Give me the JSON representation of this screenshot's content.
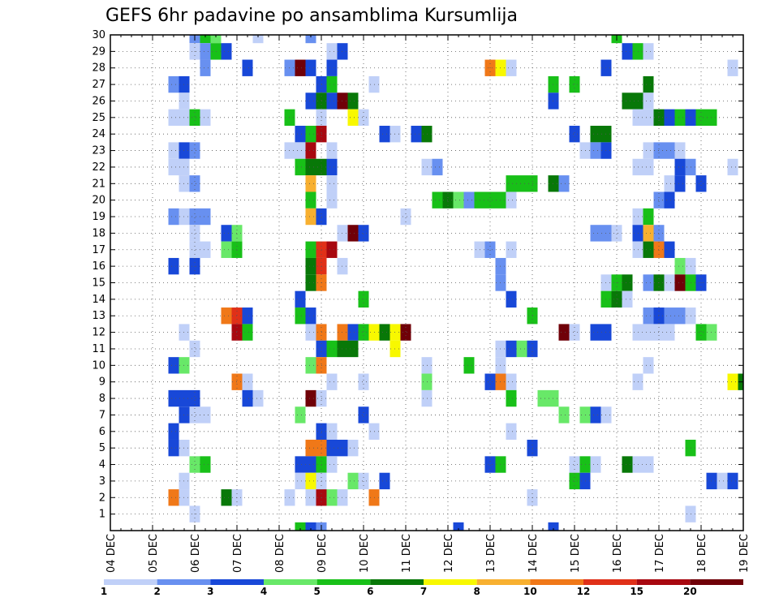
{
  "chart_data": {
    "type": "heatmap",
    "title": "GEFS 6hr padavine po ansamblima Kursumlija",
    "xlabel": "",
    "ylabel": "",
    "x_tick_labels": [
      "04 DEC",
      "05 DEC",
      "06 DEC",
      "07 DEC",
      "08 DEC",
      "09 DEC",
      "10 DEC",
      "11 DEC",
      "12 DEC",
      "13 DEC",
      "14 DEC",
      "15 DEC",
      "16 DEC",
      "17 DEC",
      "18 DEC",
      "19 DEC"
    ],
    "x_range_6h_steps": [
      0,
      60
    ],
    "y_tick_labels": [
      "1",
      "2",
      "3",
      "4",
      "5",
      "6",
      "7",
      "8",
      "9",
      "10",
      "11",
      "12",
      "13",
      "14",
      "15",
      "16",
      "17",
      "18",
      "19",
      "20",
      "21",
      "22",
      "23",
      "24",
      "25",
      "26",
      "27",
      "28",
      "29",
      "30"
    ],
    "y_range": [
      0,
      30
    ],
    "grid": true,
    "legend_position": "bottom",
    "color_levels": [
      {
        "label": "1",
        "color": "#c0d0f8"
      },
      {
        "label": "2",
        "color": "#6890f0"
      },
      {
        "label": "3",
        "color": "#1848d8"
      },
      {
        "label": "4",
        "color": "#68e868"
      },
      {
        "label": "5",
        "color": "#18c018"
      },
      {
        "label": "6",
        "color": "#087808"
      },
      {
        "label": "7",
        "color": "#f8f800"
      },
      {
        "label": "8",
        "color": "#f8b030"
      },
      {
        "label": "10",
        "color": "#f07818"
      },
      {
        "label": "12",
        "color": "#e03018"
      },
      {
        "label": "15",
        "color": "#a80810"
      },
      {
        "label": "20",
        "color": "#700008"
      }
    ],
    "legend_tick_labels": [
      "1",
      "2",
      "3",
      "4",
      "5",
      "6",
      "7",
      "8",
      "10",
      "12",
      "15",
      "20"
    ],
    "cells": [
      [
        30,
        8,
        1
      ],
      [
        30,
        9,
        4
      ],
      [
        30,
        10,
        3
      ],
      [
        30,
        14,
        0
      ],
      [
        30,
        19,
        1
      ],
      [
        30,
        48,
        4
      ],
      [
        29,
        8,
        0
      ],
      [
        29,
        9,
        1
      ],
      [
        29,
        10,
        4
      ],
      [
        29,
        11,
        2
      ],
      [
        29,
        21,
        0
      ],
      [
        29,
        22,
        2
      ],
      [
        29,
        49,
        2
      ],
      [
        29,
        50,
        4
      ],
      [
        29,
        51,
        0
      ],
      [
        28,
        9,
        1
      ],
      [
        28,
        13,
        2
      ],
      [
        28,
        17,
        1
      ],
      [
        28,
        18,
        11
      ],
      [
        28,
        19,
        2
      ],
      [
        28,
        21,
        2
      ],
      [
        28,
        36,
        8
      ],
      [
        28,
        37,
        6
      ],
      [
        28,
        38,
        0
      ],
      [
        28,
        47,
        2
      ],
      [
        28,
        59,
        0
      ],
      [
        27,
        6,
        1
      ],
      [
        27,
        7,
        2
      ],
      [
        27,
        20,
        2
      ],
      [
        27,
        21,
        4
      ],
      [
        27,
        25,
        0
      ],
      [
        27,
        42,
        4
      ],
      [
        27,
        44,
        4
      ],
      [
        27,
        51,
        5
      ],
      [
        26,
        7,
        0
      ],
      [
        26,
        19,
        2
      ],
      [
        26,
        20,
        5
      ],
      [
        26,
        21,
        2
      ],
      [
        26,
        22,
        11
      ],
      [
        26,
        23,
        5
      ],
      [
        26,
        42,
        2
      ],
      [
        26,
        49,
        5
      ],
      [
        26,
        50,
        5
      ],
      [
        26,
        51,
        0
      ],
      [
        25,
        6,
        0
      ],
      [
        25,
        7,
        0
      ],
      [
        25,
        8,
        4
      ],
      [
        25,
        9,
        0
      ],
      [
        25,
        17,
        4
      ],
      [
        25,
        20,
        0
      ],
      [
        25,
        23,
        6
      ],
      [
        25,
        24,
        0
      ],
      [
        25,
        50,
        0
      ],
      [
        25,
        51,
        0
      ],
      [
        25,
        52,
        5
      ],
      [
        25,
        53,
        2
      ],
      [
        25,
        54,
        4
      ],
      [
        25,
        55,
        2
      ],
      [
        25,
        56,
        4
      ],
      [
        25,
        57,
        4
      ],
      [
        24,
        18,
        2
      ],
      [
        24,
        19,
        4
      ],
      [
        24,
        20,
        10
      ],
      [
        24,
        26,
        2
      ],
      [
        24,
        27,
        0
      ],
      [
        24,
        29,
        2
      ],
      [
        24,
        30,
        5
      ],
      [
        24,
        44,
        2
      ],
      [
        24,
        46,
        5
      ],
      [
        24,
        47,
        5
      ],
      [
        23,
        6,
        0
      ],
      [
        23,
        7,
        2
      ],
      [
        23,
        8,
        1
      ],
      [
        23,
        17,
        0
      ],
      [
        23,
        18,
        0
      ],
      [
        23,
        19,
        10
      ],
      [
        23,
        21,
        0
      ],
      [
        23,
        45,
        0
      ],
      [
        23,
        46,
        1
      ],
      [
        23,
        47,
        2
      ],
      [
        23,
        51,
        0
      ],
      [
        23,
        52,
        1
      ],
      [
        23,
        53,
        1
      ],
      [
        23,
        54,
        0
      ],
      [
        22,
        6,
        0
      ],
      [
        22,
        7,
        0
      ],
      [
        22,
        18,
        4
      ],
      [
        22,
        19,
        5
      ],
      [
        22,
        20,
        5
      ],
      [
        22,
        21,
        2
      ],
      [
        22,
        30,
        0
      ],
      [
        22,
        31,
        1
      ],
      [
        22,
        50,
        0
      ],
      [
        22,
        51,
        0
      ],
      [
        22,
        54,
        2
      ],
      [
        22,
        55,
        1
      ],
      [
        22,
        59,
        0
      ],
      [
        21,
        7,
        0
      ],
      [
        21,
        8,
        1
      ],
      [
        21,
        19,
        7
      ],
      [
        21,
        21,
        0
      ],
      [
        21,
        38,
        4
      ],
      [
        21,
        39,
        4
      ],
      [
        21,
        40,
        4
      ],
      [
        21,
        42,
        5
      ],
      [
        21,
        43,
        1
      ],
      [
        21,
        53,
        0
      ],
      [
        21,
        54,
        2
      ],
      [
        21,
        56,
        2
      ],
      [
        20,
        19,
        4
      ],
      [
        20,
        21,
        0
      ],
      [
        20,
        31,
        4
      ],
      [
        20,
        32,
        5
      ],
      [
        20,
        33,
        3
      ],
      [
        20,
        34,
        1
      ],
      [
        20,
        35,
        4
      ],
      [
        20,
        36,
        4
      ],
      [
        20,
        37,
        4
      ],
      [
        20,
        38,
        0
      ],
      [
        20,
        52,
        1
      ],
      [
        20,
        53,
        2
      ],
      [
        19,
        6,
        1
      ],
      [
        19,
        7,
        0
      ],
      [
        19,
        8,
        1
      ],
      [
        19,
        9,
        1
      ],
      [
        19,
        19,
        7
      ],
      [
        19,
        20,
        2
      ],
      [
        19,
        28,
        0
      ],
      [
        19,
        50,
        0
      ],
      [
        19,
        51,
        4
      ],
      [
        18,
        8,
        0
      ],
      [
        18,
        11,
        2
      ],
      [
        18,
        12,
        3
      ],
      [
        18,
        22,
        0
      ],
      [
        18,
        23,
        11
      ],
      [
        18,
        24,
        2
      ],
      [
        18,
        46,
        1
      ],
      [
        18,
        47,
        1
      ],
      [
        18,
        48,
        0
      ],
      [
        18,
        50,
        2
      ],
      [
        18,
        51,
        7
      ],
      [
        18,
        52,
        1
      ],
      [
        17,
        8,
        0
      ],
      [
        17,
        9,
        0
      ],
      [
        17,
        11,
        3
      ],
      [
        17,
        12,
        4
      ],
      [
        17,
        19,
        4
      ],
      [
        17,
        20,
        9
      ],
      [
        17,
        21,
        10
      ],
      [
        17,
        35,
        0
      ],
      [
        17,
        36,
        1
      ],
      [
        17,
        38,
        0
      ],
      [
        17,
        50,
        0
      ],
      [
        17,
        51,
        5
      ],
      [
        17,
        52,
        8
      ],
      [
        17,
        53,
        2
      ],
      [
        16,
        6,
        2
      ],
      [
        16,
        8,
        2
      ],
      [
        16,
        19,
        5
      ],
      [
        16,
        20,
        9
      ],
      [
        16,
        22,
        0
      ],
      [
        16,
        37,
        1
      ],
      [
        16,
        54,
        3
      ],
      [
        16,
        55,
        0
      ],
      [
        15,
        19,
        5
      ],
      [
        15,
        20,
        8
      ],
      [
        15,
        37,
        1
      ],
      [
        15,
        47,
        0
      ],
      [
        15,
        48,
        4
      ],
      [
        15,
        49,
        5
      ],
      [
        15,
        51,
        1
      ],
      [
        15,
        52,
        5
      ],
      [
        15,
        53,
        0
      ],
      [
        15,
        54,
        11
      ],
      [
        15,
        55,
        4
      ],
      [
        15,
        56,
        2
      ],
      [
        14,
        18,
        2
      ],
      [
        14,
        24,
        4
      ],
      [
        14,
        38,
        2
      ],
      [
        14,
        47,
        4
      ],
      [
        14,
        48,
        5
      ],
      [
        14,
        49,
        0
      ],
      [
        13,
        11,
        8
      ],
      [
        13,
        12,
        9
      ],
      [
        13,
        13,
        2
      ],
      [
        13,
        18,
        4
      ],
      [
        13,
        19,
        2
      ],
      [
        13,
        40,
        4
      ],
      [
        13,
        51,
        1
      ],
      [
        13,
        52,
        2
      ],
      [
        13,
        53,
        1
      ],
      [
        13,
        54,
        1
      ],
      [
        13,
        55,
        0
      ],
      [
        12,
        7,
        0
      ],
      [
        12,
        12,
        10
      ],
      [
        12,
        13,
        4
      ],
      [
        12,
        19,
        0
      ],
      [
        12,
        20,
        8
      ],
      [
        12,
        22,
        8
      ],
      [
        12,
        23,
        2
      ],
      [
        12,
        24,
        4
      ],
      [
        12,
        25,
        6
      ],
      [
        12,
        26,
        5
      ],
      [
        12,
        27,
        6
      ],
      [
        12,
        28,
        11
      ],
      [
        12,
        43,
        11
      ],
      [
        12,
        44,
        0
      ],
      [
        12,
        46,
        2
      ],
      [
        12,
        47,
        2
      ],
      [
        12,
        50,
        0
      ],
      [
        12,
        51,
        0
      ],
      [
        12,
        52,
        0
      ],
      [
        12,
        53,
        0
      ],
      [
        12,
        56,
        4
      ],
      [
        12,
        57,
        3
      ],
      [
        11,
        8,
        0
      ],
      [
        11,
        20,
        2
      ],
      [
        11,
        21,
        4
      ],
      [
        11,
        22,
        5
      ],
      [
        11,
        23,
        5
      ],
      [
        11,
        27,
        6
      ],
      [
        11,
        37,
        0
      ],
      [
        11,
        38,
        2
      ],
      [
        11,
        39,
        3
      ],
      [
        11,
        40,
        2
      ],
      [
        10,
        6,
        2
      ],
      [
        10,
        7,
        3
      ],
      [
        10,
        19,
        3
      ],
      [
        10,
        20,
        8
      ],
      [
        10,
        30,
        0
      ],
      [
        10,
        34,
        4
      ],
      [
        10,
        37,
        0
      ],
      [
        10,
        51,
        0
      ],
      [
        9,
        12,
        8
      ],
      [
        9,
        13,
        0
      ],
      [
        9,
        21,
        0
      ],
      [
        9,
        24,
        0
      ],
      [
        9,
        30,
        3
      ],
      [
        9,
        36,
        2
      ],
      [
        9,
        37,
        8
      ],
      [
        9,
        38,
        0
      ],
      [
        9,
        50,
        0
      ],
      [
        9,
        59,
        6
      ],
      [
        9,
        60,
        5
      ],
      [
        8,
        6,
        2
      ],
      [
        8,
        7,
        2
      ],
      [
        8,
        8,
        2
      ],
      [
        8,
        13,
        2
      ],
      [
        8,
        14,
        0
      ],
      [
        8,
        19,
        11
      ],
      [
        8,
        20,
        0
      ],
      [
        8,
        30,
        0
      ],
      [
        8,
        38,
        4
      ],
      [
        8,
        41,
        3
      ],
      [
        8,
        42,
        3
      ],
      [
        7,
        7,
        2
      ],
      [
        7,
        8,
        0
      ],
      [
        7,
        9,
        0
      ],
      [
        7,
        18,
        3
      ],
      [
        7,
        24,
        2
      ],
      [
        7,
        43,
        3
      ],
      [
        7,
        45,
        3
      ],
      [
        7,
        46,
        2
      ],
      [
        7,
        47,
        0
      ],
      [
        6,
        6,
        2
      ],
      [
        6,
        20,
        2
      ],
      [
        6,
        21,
        0
      ],
      [
        6,
        25,
        0
      ],
      [
        6,
        38,
        0
      ],
      [
        5,
        6,
        2
      ],
      [
        5,
        7,
        0
      ],
      [
        5,
        19,
        8
      ],
      [
        5,
        20,
        8
      ],
      [
        5,
        21,
        2
      ],
      [
        5,
        22,
        2
      ],
      [
        5,
        23,
        0
      ],
      [
        5,
        40,
        2
      ],
      [
        5,
        55,
        4
      ],
      [
        4,
        8,
        3
      ],
      [
        4,
        9,
        4
      ],
      [
        4,
        18,
        2
      ],
      [
        4,
        19,
        2
      ],
      [
        4,
        20,
        4
      ],
      [
        4,
        21,
        0
      ],
      [
        4,
        36,
        2
      ],
      [
        4,
        37,
        4
      ],
      [
        4,
        44,
        0
      ],
      [
        4,
        45,
        4
      ],
      [
        4,
        46,
        0
      ],
      [
        4,
        49,
        5
      ],
      [
        4,
        50,
        0
      ],
      [
        4,
        51,
        0
      ],
      [
        3,
        7,
        0
      ],
      [
        3,
        18,
        0
      ],
      [
        3,
        19,
        6
      ],
      [
        3,
        20,
        0
      ],
      [
        3,
        23,
        3
      ],
      [
        3,
        24,
        0
      ],
      [
        3,
        26,
        2
      ],
      [
        3,
        44,
        4
      ],
      [
        3,
        45,
        2
      ],
      [
        3,
        57,
        2
      ],
      [
        3,
        58,
        0
      ],
      [
        3,
        59,
        2
      ],
      [
        2,
        6,
        8
      ],
      [
        2,
        7,
        0
      ],
      [
        2,
        11,
        5
      ],
      [
        2,
        12,
        0
      ],
      [
        2,
        17,
        0
      ],
      [
        2,
        19,
        0
      ],
      [
        2,
        20,
        10
      ],
      [
        2,
        21,
        3
      ],
      [
        2,
        22,
        0
      ],
      [
        2,
        25,
        8
      ],
      [
        2,
        40,
        0
      ],
      [
        1,
        8,
        0
      ],
      [
        1,
        55,
        0
      ],
      [
        0,
        18,
        4
      ],
      [
        0,
        19,
        2
      ],
      [
        0,
        20,
        1
      ],
      [
        0,
        33,
        2
      ],
      [
        0,
        42,
        2
      ]
    ]
  }
}
